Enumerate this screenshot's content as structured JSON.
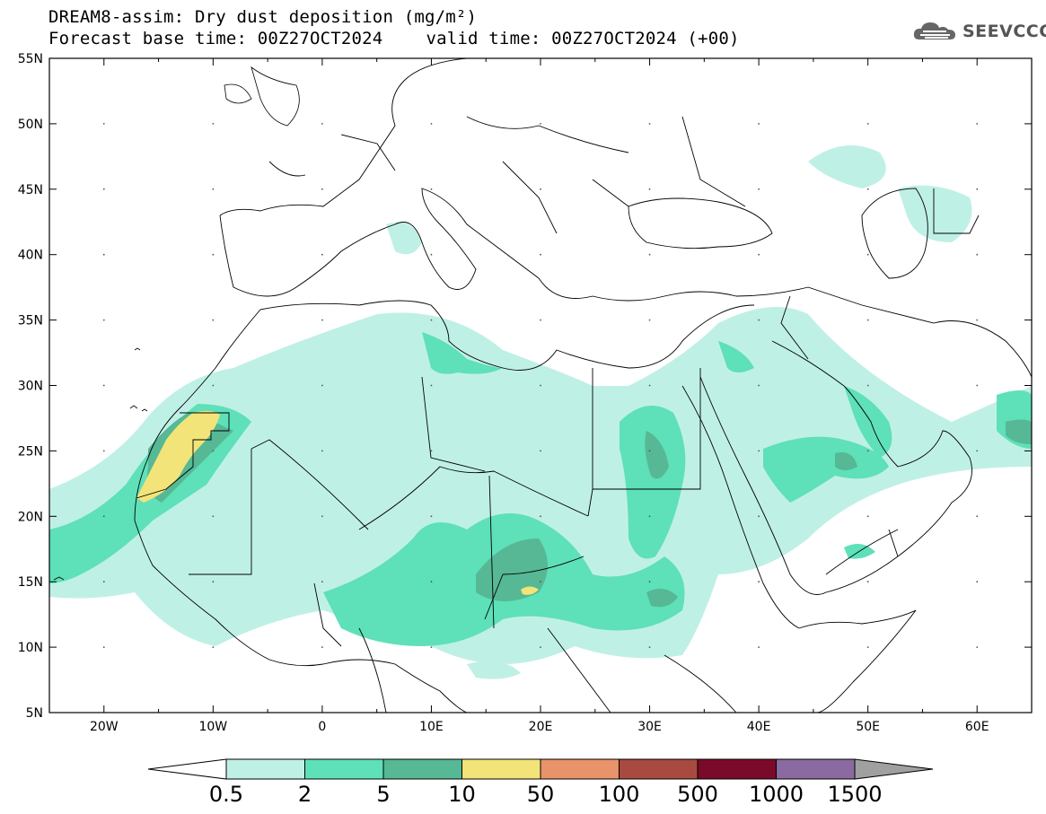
{
  "header": {
    "title": "DREAM8-assim: Dry dust deposition (mg/m²)",
    "base_time": "Forecast base time: 00Z27OCT2024",
    "valid_time": "valid time: 00Z27OCT2024 (+00)"
  },
  "logo": {
    "text": "SEEVCCC",
    "icon": "cloud-icon"
  },
  "map": {
    "lon_range": [
      -25,
      65
    ],
    "lat_range": [
      5,
      55
    ],
    "lat_labels": [
      "55N",
      "50N",
      "45N",
      "40N",
      "35N",
      "30N",
      "25N",
      "20N",
      "15N",
      "10N",
      "5N"
    ],
    "lon_labels": [
      "20W",
      "10W",
      "0",
      "10E",
      "20E",
      "30E",
      "40E",
      "50E",
      "60E"
    ]
  },
  "colorbar": {
    "labels": [
      "0.5",
      "2",
      "5",
      "10",
      "50",
      "100",
      "500",
      "1000",
      "1500"
    ],
    "colors": [
      "#ffffff",
      "#bff0e6",
      "#5ee0b8",
      "#56b894",
      "#f2e479",
      "#e8936a",
      "#a84a40",
      "#7a0a2a",
      "#8a6aa0",
      "#a0a0a0"
    ]
  }
}
